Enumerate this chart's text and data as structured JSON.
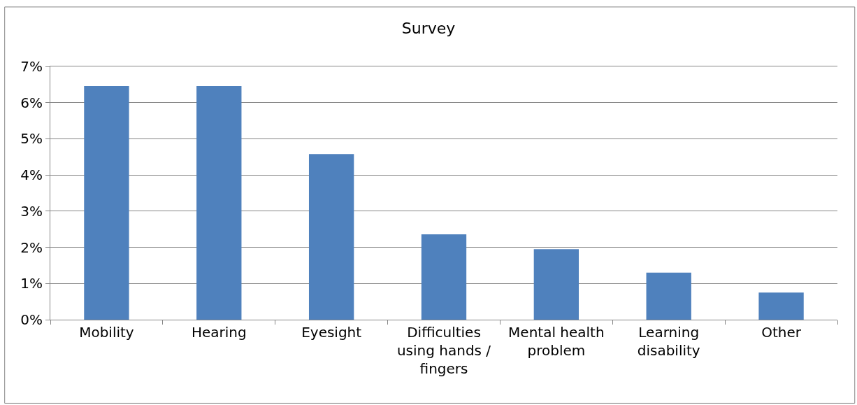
{
  "chart_data": {
    "type": "bar",
    "title": "Survey",
    "categories": [
      "Mobility",
      "Hearing",
      "Eyesight",
      "Difficulties using hands / fingers",
      "Mental health problem",
      "Learning disability",
      "Other"
    ],
    "values": [
      6.46,
      6.46,
      4.58,
      2.36,
      1.95,
      1.3,
      0.75
    ],
    "color": "#4f81bd",
    "ylim": [
      0,
      7
    ],
    "yticks": [
      {
        "value": 0,
        "label": "0%"
      },
      {
        "value": 1,
        "label": "1%"
      },
      {
        "value": 2,
        "label": "2%"
      },
      {
        "value": 3,
        "label": "3%"
      },
      {
        "value": 4,
        "label": "4%"
      },
      {
        "value": 5,
        "label": "5%"
      },
      {
        "value": 6,
        "label": "6%"
      },
      {
        "value": 7,
        "label": "7%"
      }
    ],
    "grid": "y"
  }
}
